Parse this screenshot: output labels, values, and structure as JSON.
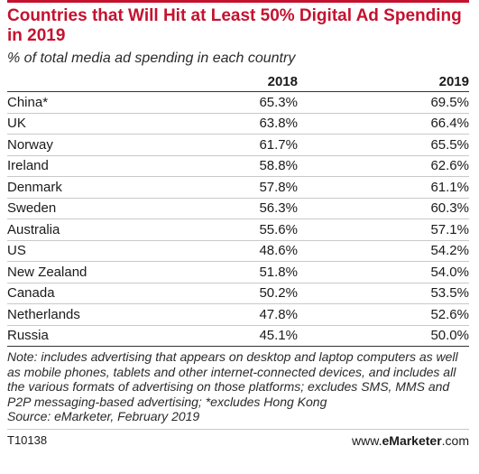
{
  "header": {
    "title": "Countries that Will Hit at Least 50% Digital Ad Spending in 2019",
    "subtitle": "% of total media ad spending in each country",
    "accent_color": "#c4122f"
  },
  "chart_data": {
    "type": "table",
    "title": "Countries that Will Hit at Least 50% Digital Ad Spending in 2019",
    "subtitle": "% of total media ad spending in each country",
    "columns": [
      "",
      "2018",
      "2019"
    ],
    "rows": [
      {
        "country": "China*",
        "v2018": "65.3%",
        "v2019": "69.5%"
      },
      {
        "country": "UK",
        "v2018": "63.8%",
        "v2019": "66.4%"
      },
      {
        "country": "Norway",
        "v2018": "61.7%",
        "v2019": "65.5%"
      },
      {
        "country": "Ireland",
        "v2018": "58.8%",
        "v2019": "62.6%"
      },
      {
        "country": "Denmark",
        "v2018": "57.8%",
        "v2019": "61.1%"
      },
      {
        "country": "Sweden",
        "v2018": "56.3%",
        "v2019": "60.3%"
      },
      {
        "country": "Australia",
        "v2018": "55.6%",
        "v2019": "57.1%"
      },
      {
        "country": "US",
        "v2018": "48.6%",
        "v2019": "54.2%"
      },
      {
        "country": "New Zealand",
        "v2018": "51.8%",
        "v2019": "54.0%"
      },
      {
        "country": "Canada",
        "v2018": "50.2%",
        "v2019": "53.5%"
      },
      {
        "country": "Netherlands",
        "v2018": "47.8%",
        "v2019": "52.6%"
      },
      {
        "country": "Russia",
        "v2018": "45.1%",
        "v2019": "50.0%"
      }
    ]
  },
  "note": "Note: includes advertising that appears on desktop and laptop computers as well as mobile phones, tablets and other internet-connected devices, and includes all the various formats of advertising on those platforms; excludes SMS, MMS and P2P messaging-based advertising; *excludes Hong Kong",
  "source": "Source: eMarketer, February 2019",
  "footer": {
    "chart_id": "T10138",
    "brand_prefix": "www.",
    "brand_name": "eMarketer",
    "brand_suffix": ".com"
  }
}
